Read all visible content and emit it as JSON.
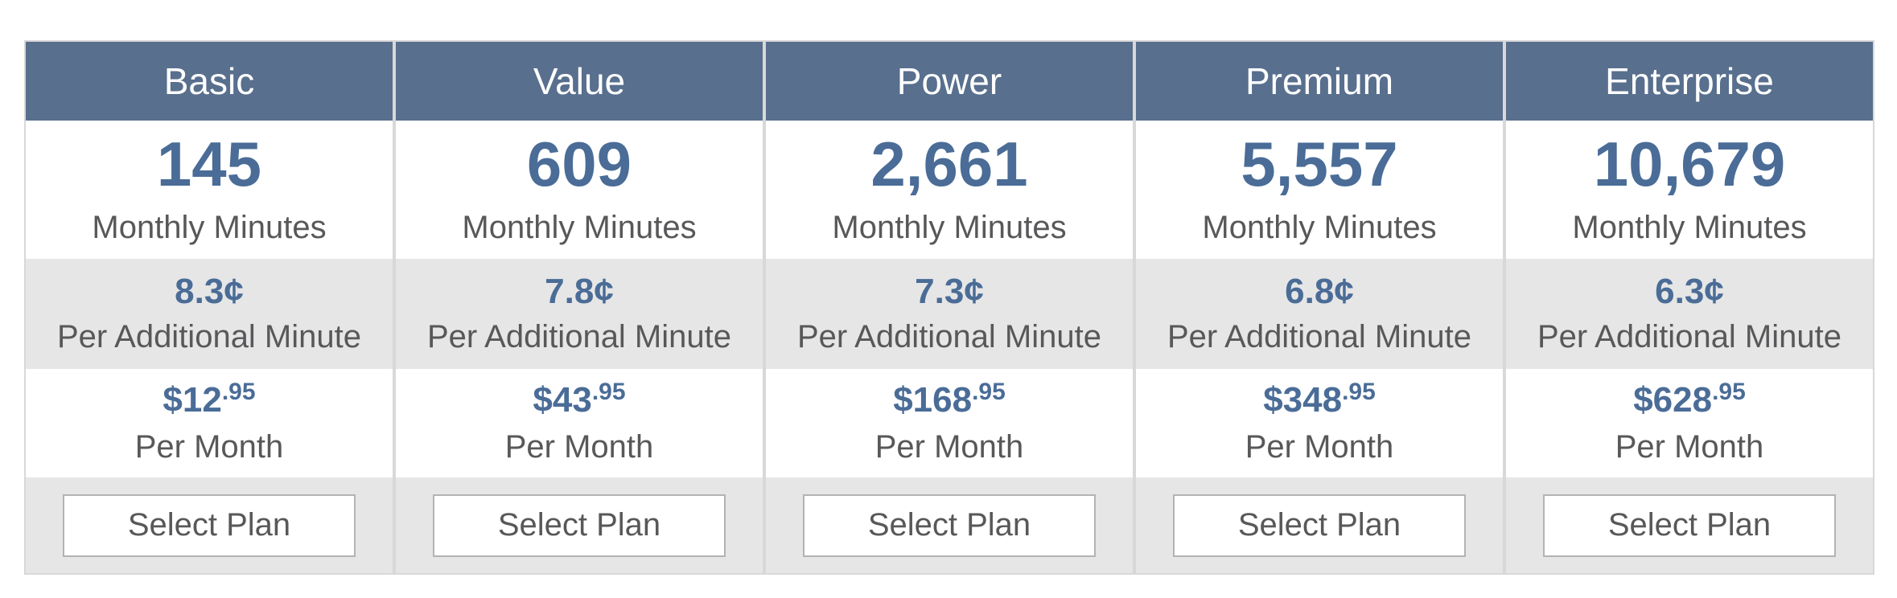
{
  "colors": {
    "header_bg": "#586f8e",
    "header_text": "#ffffff",
    "accent_text": "#4a6c97",
    "label_text": "#58585a",
    "alt_row_bg": "#e6e6e6",
    "divider": "#d8d8d8",
    "button_border": "#b3b3b3",
    "button_bg": "#ffffff"
  },
  "labels": {
    "monthly_minutes": "Monthly Minutes",
    "per_additional_minute": "Per Additional Minute",
    "per_month": "Per Month",
    "select_plan": "Select Plan"
  },
  "plans": [
    {
      "name": "Basic",
      "monthly_minutes": "145",
      "additional_rate": "8.3¢",
      "price_main": "$12",
      "price_sup": ".95"
    },
    {
      "name": "Value",
      "monthly_minutes": "609",
      "additional_rate": "7.8¢",
      "price_main": "$43",
      "price_sup": ".95"
    },
    {
      "name": "Power",
      "monthly_minutes": "2,661",
      "additional_rate": "7.3¢",
      "price_main": "$168",
      "price_sup": ".95"
    },
    {
      "name": "Premium",
      "monthly_minutes": "5,557",
      "additional_rate": "6.8¢",
      "price_main": "$348",
      "price_sup": ".95"
    },
    {
      "name": "Enterprise",
      "monthly_minutes": "10,679",
      "additional_rate": "6.3¢",
      "price_main": "$628",
      "price_sup": ".95"
    }
  ]
}
